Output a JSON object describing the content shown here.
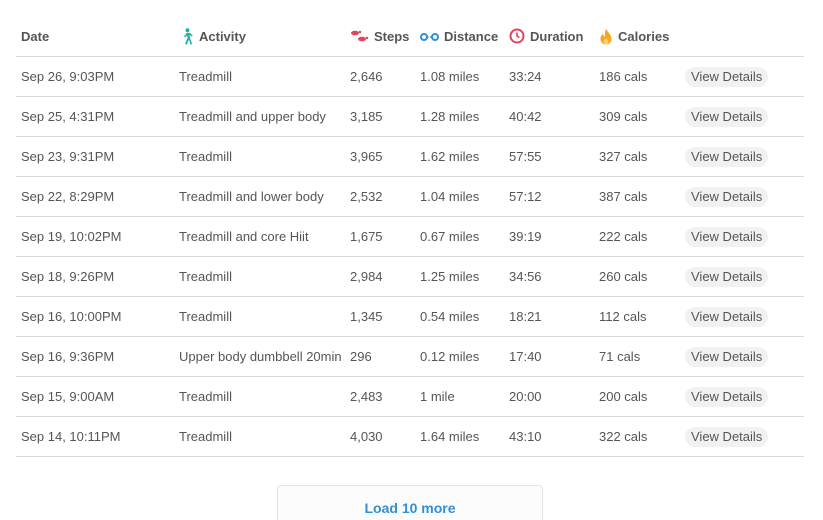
{
  "headers": {
    "date": "Date",
    "activity": "Activity",
    "steps": "Steps",
    "distance": "Distance",
    "duration": "Duration",
    "calories": "Calories"
  },
  "icons": {
    "activity": "walking-person-icon",
    "steps": "footprints-icon",
    "distance": "distance-icon",
    "duration": "clock-icon",
    "calories": "flame-icon"
  },
  "colors": {
    "activity_icon": "#1fb3a6",
    "steps_icon": "#e2445c",
    "distance_icon": "#2f8fd8",
    "duration_icon": "#e2445c",
    "calories_icon": "#f5a623",
    "link": "#2f8fd8"
  },
  "rows": [
    {
      "date": "Sep 26, 9:03PM",
      "activity": "Treadmill",
      "steps": "2,646",
      "distance": "1.08 miles",
      "duration": "33:24",
      "calories": "186 cals",
      "action": "View Details"
    },
    {
      "date": "Sep 25, 4:31PM",
      "activity": "Treadmill and upper body",
      "steps": "3,185",
      "distance": "1.28 miles",
      "duration": "40:42",
      "calories": "309 cals",
      "action": "View Details"
    },
    {
      "date": "Sep 23, 9:31PM",
      "activity": "Treadmill",
      "steps": "3,965",
      "distance": "1.62 miles",
      "duration": "57:55",
      "calories": "327 cals",
      "action": "View Details"
    },
    {
      "date": "Sep 22, 8:29PM",
      "activity": "Treadmill and lower body",
      "steps": "2,532",
      "distance": "1.04 miles",
      "duration": "57:12",
      "calories": "387 cals",
      "action": "View Details"
    },
    {
      "date": "Sep 19, 10:02PM",
      "activity": "Treadmill and core Hiit",
      "steps": "1,675",
      "distance": "0.67 miles",
      "duration": "39:19",
      "calories": "222 cals",
      "action": "View Details"
    },
    {
      "date": "Sep 18, 9:26PM",
      "activity": "Treadmill",
      "steps": "2,984",
      "distance": "1.25 miles",
      "duration": "34:56",
      "calories": "260 cals",
      "action": "View Details"
    },
    {
      "date": "Sep 16, 10:00PM",
      "activity": "Treadmill",
      "steps": "1,345",
      "distance": "0.54 miles",
      "duration": "18:21",
      "calories": "112 cals",
      "action": "View Details"
    },
    {
      "date": "Sep 16, 9:36PM",
      "activity": "Upper body dumbbell 20min",
      "steps": "296",
      "distance": "0.12 miles",
      "duration": "17:40",
      "calories": "71 cals",
      "action": "View Details"
    },
    {
      "date": "Sep 15, 9:00AM",
      "activity": "Treadmill",
      "steps": "2,483",
      "distance": "1 mile",
      "duration": "20:00",
      "calories": "200 cals",
      "action": "View Details"
    },
    {
      "date": "Sep 14, 10:11PM",
      "activity": "Treadmill",
      "steps": "4,030",
      "distance": "1.64 miles",
      "duration": "43:10",
      "calories": "322 cals",
      "action": "View Details"
    }
  ],
  "load_more": "Load 10 more"
}
